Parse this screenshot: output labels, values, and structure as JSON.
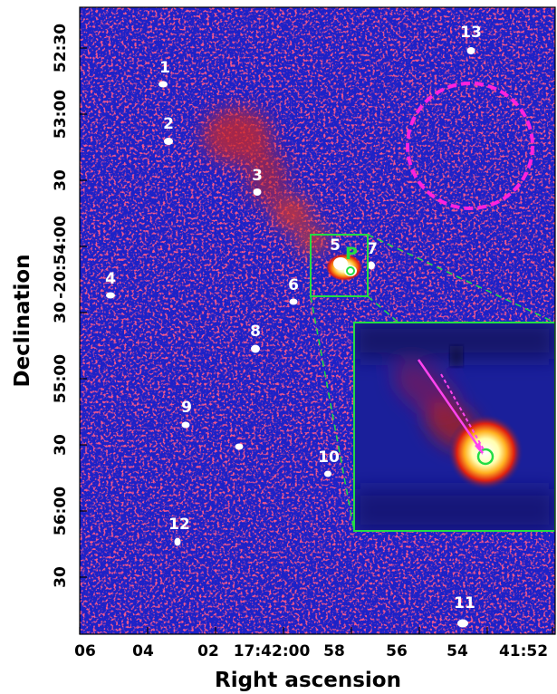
{
  "axes": {
    "x_label": "Right ascension",
    "y_label": "Declination",
    "x_ticks": [
      "06",
      "04",
      "02",
      "17:42:00",
      "58",
      "56",
      "54",
      "41:52"
    ],
    "y_ticks": [
      "52:30",
      "53:00",
      "30",
      "-20:54:00",
      "30",
      "55:00",
      "30",
      "56:00",
      "30"
    ]
  },
  "sources": [
    {
      "label": "1"
    },
    {
      "label": "2"
    },
    {
      "label": "3"
    },
    {
      "label": "4"
    },
    {
      "label": "5"
    },
    {
      "label": "6"
    },
    {
      "label": "7"
    },
    {
      "label": "8"
    },
    {
      "label": "9"
    },
    {
      "label": "10"
    },
    {
      "label": "11"
    },
    {
      "label": "12"
    },
    {
      "label": "13"
    }
  ],
  "pulsar_marker": "P",
  "colors": {
    "background": "#1c22c8",
    "diffuse": "#d8281c",
    "source": "#ffffff",
    "inset_frame": "#22dd44",
    "background_region": "#ff22dd",
    "arrow": "#ff44ee"
  }
}
